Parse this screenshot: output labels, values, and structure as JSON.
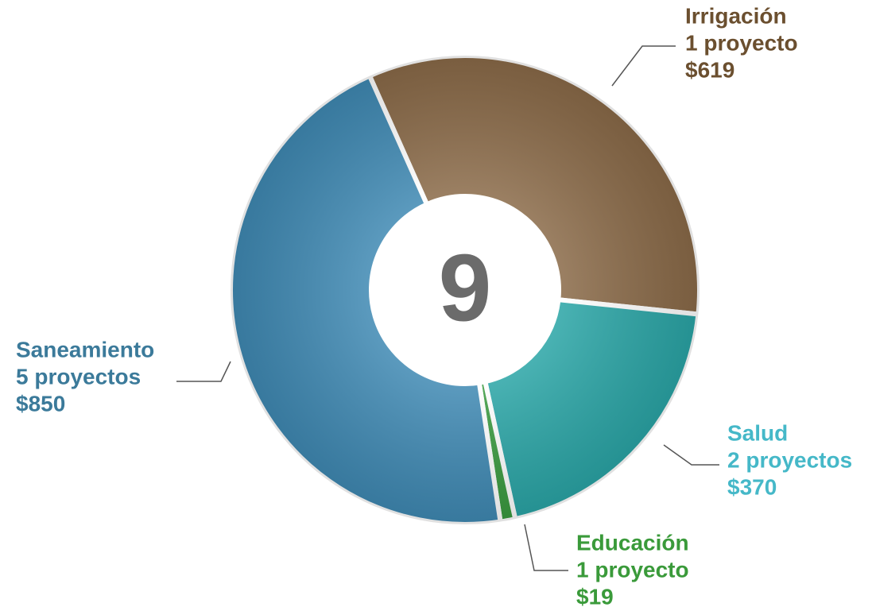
{
  "chart_data": {
    "type": "donut",
    "categories": [
      "Irrigación",
      "Salud",
      "Educación",
      "Saneamiento"
    ],
    "counts": [
      "1 proyecto",
      "2 proyectos",
      "1 proyecto",
      "5 proyectos"
    ],
    "values": [
      619,
      370,
      19,
      850
    ],
    "value_labels": [
      "$619",
      "$370",
      "$19",
      "$850"
    ],
    "colors": [
      "#8a6a48",
      "#2aa5a6",
      "#3a9a3f",
      "#3f89b3"
    ],
    "label_colors": [
      "#6b4f2f",
      "#45b8c8",
      "#3a9a3a",
      "#3b7a9a"
    ],
    "center_label": 9
  }
}
